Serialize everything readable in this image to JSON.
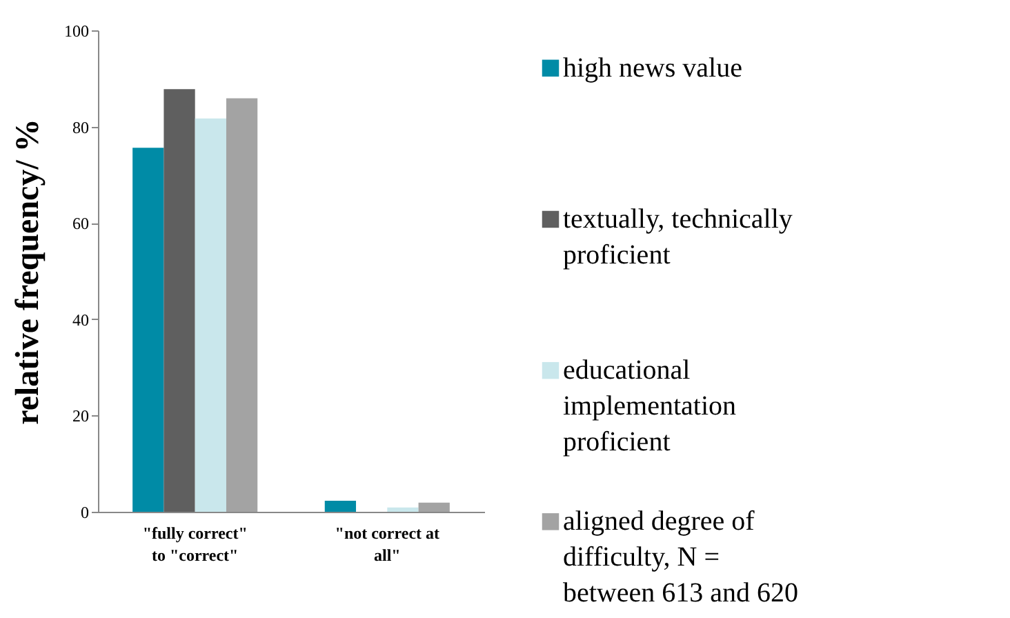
{
  "chart_data": {
    "type": "bar",
    "ylabel": "relative frequency/ %",
    "categories": [
      "\"fully correct\" to \"correct\"",
      "\"not correct at all\""
    ],
    "series": [
      {
        "name": "high news value",
        "color": "#008ba6",
        "values": [
          75.6,
          2.3
        ]
      },
      {
        "name": "textually, technically proficient",
        "color": "#5f5f5f",
        "values": [
          87.8,
          0
        ]
      },
      {
        "name": "educational implementation proficient",
        "color": "#c9e7ec",
        "values": [
          81.7,
          0.9
        ]
      },
      {
        "name": "aligned degree of difficulty, N = between 613 and 620",
        "color": "#a3a3a3",
        "values": [
          85.9,
          1.9
        ]
      }
    ],
    "ylim": [
      0,
      100
    ],
    "yticks": [
      0,
      20,
      40,
      60,
      80,
      100
    ],
    "grid": false,
    "legend": "right"
  }
}
